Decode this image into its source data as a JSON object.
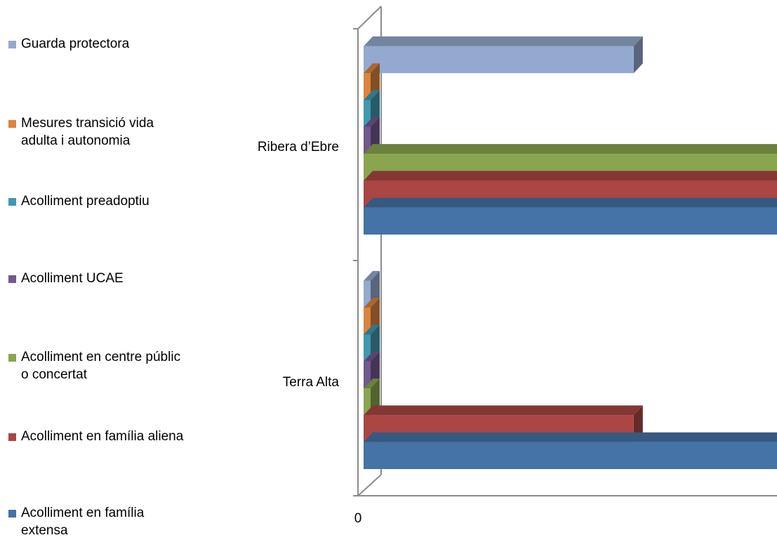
{
  "chart_data": {
    "type": "bar",
    "orientation": "horizontal",
    "style": "3d-clustered",
    "categories": [
      "Terra Alta",
      "Ribera d’Ebre"
    ],
    "series": [
      {
        "name": "Acolliment en família extensa",
        "color": "#4572a7",
        "values": [
          5,
          13
        ]
      },
      {
        "name": "Acolliment en família aliena",
        "color": "#aa4643",
        "values": [
          2,
          6
        ]
      },
      {
        "name": "Acolliment en centre públic o concertat",
        "color": "#89a54e",
        "values": [
          0,
          11
        ]
      },
      {
        "name": "Acolliment UCAE",
        "color": "#71588f",
        "values": [
          0,
          0
        ]
      },
      {
        "name": "Acolliment preadoptiu",
        "color": "#4198af",
        "values": [
          0,
          0
        ]
      },
      {
        "name": "Mesures transició vida adulta i autonomia",
        "color": "#db843d",
        "values": [
          0,
          0
        ]
      },
      {
        "name": "Guarda protectora",
        "color": "#93a9cf",
        "values": [
          0,
          2
        ]
      }
    ],
    "xlim": [
      0,
      15
    ],
    "ticks": [
      "0",
      "5",
      "10",
      "15"
    ],
    "grid": true,
    "legend_position": "left"
  }
}
